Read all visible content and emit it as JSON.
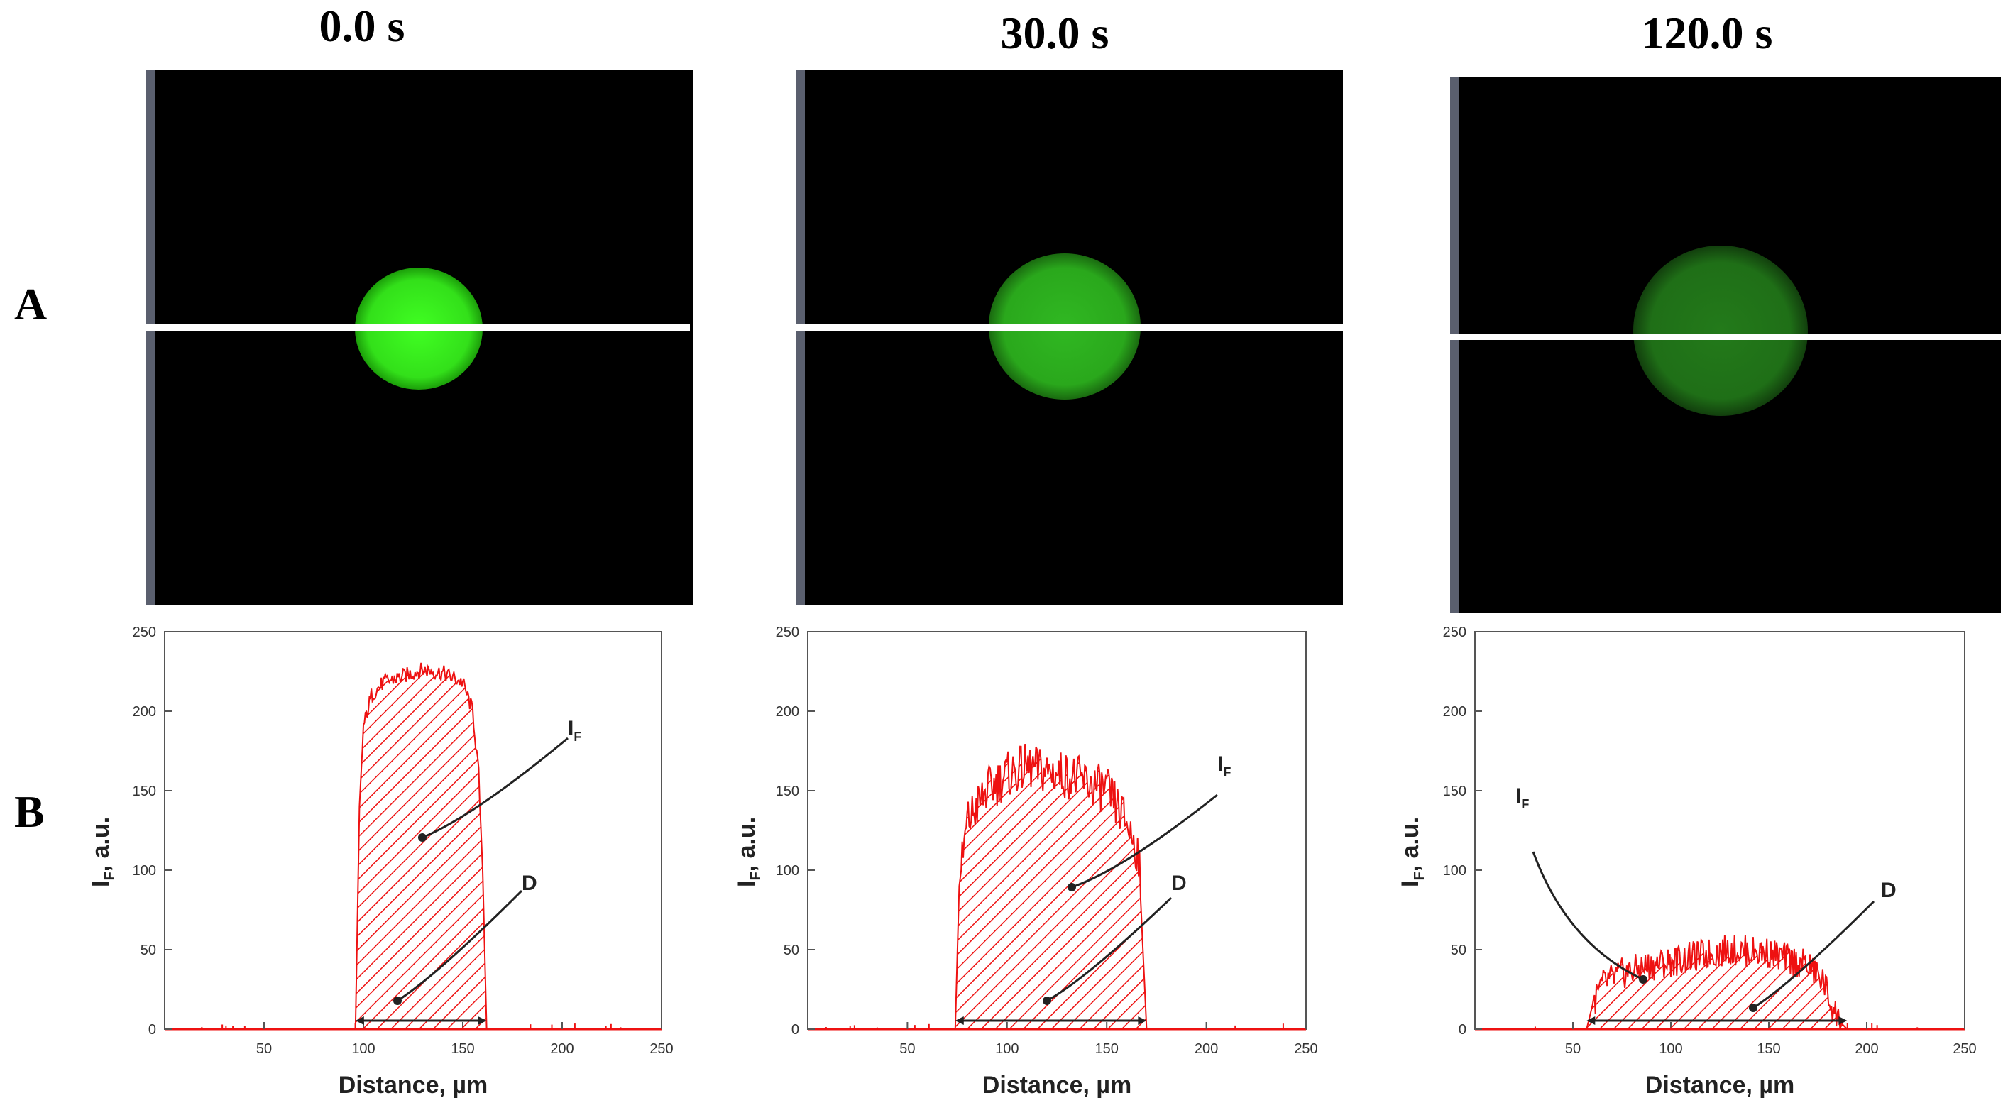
{
  "row_labels": {
    "a": "A",
    "b": "B"
  },
  "panels": [
    {
      "time_label": "0.0 s",
      "spot_color": "#33e01a",
      "spot_edge": "#1c9e0a"
    },
    {
      "time_label": "30.0 s",
      "spot_color": "#2aa81c",
      "spot_edge": "#1a6a10"
    },
    {
      "time_label": "120.0 s",
      "spot_color": "#1f6f17",
      "spot_edge": "#123f0d"
    }
  ],
  "colors": {
    "profile": "#ee1111",
    "scanline": "#ffffff",
    "image_bg": "#000000"
  },
  "chart_data": [
    {
      "type": "area",
      "ylabel_main": "I",
      "ylabel_sub": "F",
      "ylabel_rest": ", a.u.",
      "xlabel": "Distance, µm",
      "xlim": [
        0,
        250
      ],
      "ylim": [
        0,
        250
      ],
      "x_ticks": [
        50,
        100,
        150,
        200,
        250
      ],
      "y_ticks": [
        0,
        50,
        100,
        150,
        200,
        250
      ],
      "x_tick_labels": [
        "50",
        "100",
        "150",
        "200",
        "250"
      ],
      "y_tick_labels": [
        "0",
        "50",
        "100",
        "150",
        "200",
        "250"
      ],
      "profile": {
        "x": [
          96,
          98,
          100,
          104,
          110,
          120,
          130,
          140,
          150,
          155,
          158,
          160,
          162
        ],
        "y": [
          0,
          140,
          190,
          210,
          218,
          222,
          226,
          224,
          218,
          200,
          160,
          100,
          0
        ]
      },
      "diameter": {
        "x_start": 96,
        "x_end": 162
      },
      "annotations": {
        "intensity_main": "I",
        "intensity_sub": "F",
        "diameter": "D"
      }
    },
    {
      "type": "area",
      "ylabel_main": "I",
      "ylabel_sub": "F",
      "ylabel_rest": ", a.u.",
      "xlabel": "Distance, µm",
      "xlim": [
        0,
        250
      ],
      "ylim": [
        0,
        250
      ],
      "x_ticks": [
        50,
        100,
        150,
        200,
        250
      ],
      "y_ticks": [
        0,
        50,
        100,
        150,
        200,
        250
      ],
      "x_tick_labels": [
        "50",
        "100",
        "150",
        "200",
        "250"
      ],
      "y_tick_labels": [
        "0",
        "50",
        "100",
        "150",
        "200",
        "250"
      ],
      "profile": {
        "x": [
          74,
          76,
          80,
          90,
          100,
          110,
          120,
          130,
          140,
          150,
          160,
          166,
          170
        ],
        "y": [
          0,
          90,
          130,
          150,
          160,
          165,
          162,
          160,
          155,
          150,
          130,
          110,
          0
        ]
      },
      "diameter": {
        "x_start": 74,
        "x_end": 170
      },
      "annotations": {
        "intensity_main": "I",
        "intensity_sub": "F",
        "diameter": "D"
      }
    },
    {
      "type": "area",
      "ylabel_main": "I",
      "ylabel_sub": "F",
      "ylabel_rest": ", a.u.",
      "xlabel": "Distance, µm",
      "xlim": [
        0,
        250
      ],
      "ylim": [
        0,
        250
      ],
      "x_ticks": [
        50,
        100,
        150,
        200,
        250
      ],
      "y_ticks": [
        0,
        50,
        100,
        150,
        200,
        250
      ],
      "x_tick_labels": [
        "50",
        "100",
        "150",
        "200",
        "250"
      ],
      "y_tick_labels": [
        "0",
        "50",
        "100",
        "150",
        "200",
        "250"
      ],
      "profile": {
        "x": [
          57,
          60,
          65,
          75,
          90,
          110,
          130,
          150,
          170,
          178,
          182,
          186,
          190
        ],
        "y": [
          0,
          15,
          28,
          35,
          40,
          45,
          50,
          48,
          40,
          30,
          15,
          5,
          0
        ]
      },
      "diameter": {
        "x_start": 57,
        "x_end": 190
      },
      "annotations": {
        "intensity_main": "I",
        "intensity_sub": "F",
        "diameter": "D"
      }
    }
  ]
}
